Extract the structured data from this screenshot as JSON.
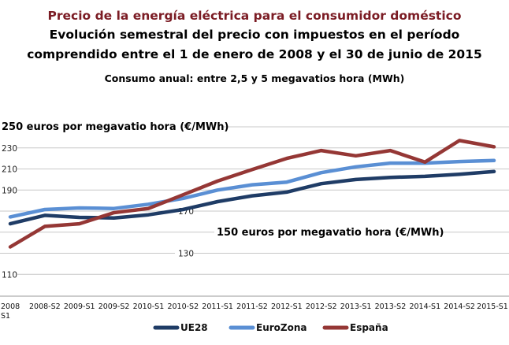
{
  "chart_data": {
    "type": "line",
    "title": "Precio de la energía eléctrica para el consumidor doméstico",
    "subtitle_lines": [
      "Evolución semestral del precio con impuestos en el período",
      "comprendido entre el 1 de enero de 2008 y el 30 de junio de 2015"
    ],
    "note": "Consumo anual: entre 2,5 y 5 megavatios hora (MWh)",
    "xlabel": "",
    "ylabel": "",
    "ylim": [
      90,
      250
    ],
    "yticks": [
      {
        "value": 250,
        "label": "250 euros por megavatio hora (€/MWh)"
      },
      {
        "value": 230,
        "label": "230"
      },
      {
        "value": 210,
        "label": "210"
      },
      {
        "value": 190,
        "label": "190"
      },
      {
        "value": 170,
        "label": "170"
      },
      {
        "value": 150,
        "label": "150 euros por megavatio hora (€/MWh)"
      },
      {
        "value": 130,
        "label": "130"
      },
      {
        "value": 110,
        "label": "110"
      }
    ],
    "grid": true,
    "legend_position": "bottom",
    "categories": [
      "2008 S1",
      "2008-S2",
      "2009-S1",
      "2009-S2",
      "2010-S1",
      "2010-S2",
      "2011-S1",
      "2011-S2",
      "2012-S1",
      "2012-S2",
      "2013-S1",
      "2013-S2",
      "2014-S1",
      "2014-S2",
      "2015-S1"
    ],
    "series": [
      {
        "name": "UE28",
        "color": "#1f3c66",
        "values": [
          158,
          166,
          164,
          163.5,
          166.5,
          171.5,
          179,
          184.5,
          188,
          196,
          200,
          202,
          203,
          205,
          207.5
        ]
      },
      {
        "name": "EuroZona",
        "color": "#5a8fd4",
        "values": [
          164.5,
          171.5,
          173,
          172.5,
          176.5,
          182,
          190,
          195,
          197.5,
          206.5,
          212,
          215.5,
          215.5,
          217,
          218
        ]
      },
      {
        "name": "España",
        "color": "#953735",
        "values": [
          136,
          155.5,
          158,
          168.5,
          172.5,
          185.5,
          198.5,
          209.5,
          220,
          227.5,
          222.5,
          227.5,
          216.5,
          237,
          231
        ]
      }
    ]
  }
}
